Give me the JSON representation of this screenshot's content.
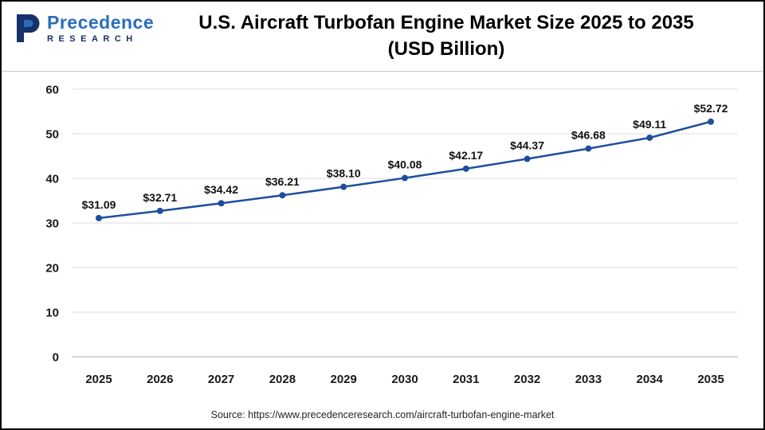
{
  "header": {
    "logo": {
      "brand": "Precedence",
      "sub": "RESEARCH",
      "icon_color": "#16316b",
      "monogram": "P"
    },
    "title_line1": "U.S. Aircraft Turbofan Engine Market Size 2025 to 2035",
    "title_line2": "(USD Billion)"
  },
  "footer": {
    "source": "Source: https://www.precedenceresearch.com/aircraft-turbofan-engine-market"
  },
  "chart_data": {
    "type": "line",
    "title": "U.S. Aircraft Turbofan Engine Market Size 2025 to 2035 (USD Billion)",
    "categories": [
      "2025",
      "2026",
      "2027",
      "2028",
      "2029",
      "2030",
      "2031",
      "2032",
      "2033",
      "2034",
      "2035"
    ],
    "values": [
      31.09,
      32.71,
      34.42,
      36.21,
      38.1,
      40.08,
      42.17,
      44.37,
      46.68,
      49.11,
      52.72
    ],
    "point_labels": [
      "$31.09",
      "$32.71",
      "$34.42",
      "$36.21",
      "$38.10",
      "$40.08",
      "$42.17",
      "$44.37",
      "$46.68",
      "$49.11",
      "$52.72"
    ],
    "xlabel": "",
    "ylabel": "",
    "ylim": [
      0,
      60
    ],
    "yticks": [
      0,
      10,
      20,
      30,
      40,
      50,
      60
    ],
    "grid": "horizontal",
    "legend": "none",
    "line_color": "#1f4e9d",
    "marker": "circle",
    "label_color": "#111111",
    "axis_text_color": "#1a1a1a",
    "gridline_color": "#dcdcdc",
    "baseline_color": "#a9a9a9"
  }
}
